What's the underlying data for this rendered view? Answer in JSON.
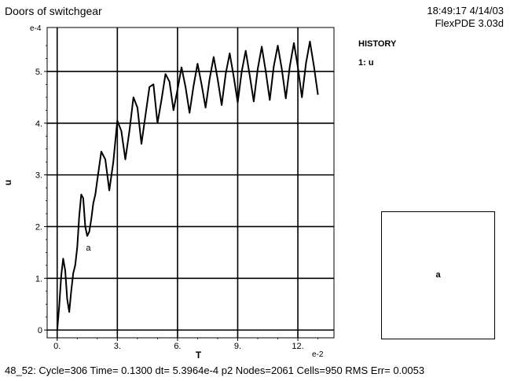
{
  "header": {
    "title": "Doors of switchgear",
    "time_date": "18:49:17 4/14/03",
    "program": "FlexPDE 3.03d"
  },
  "legend": {
    "title": "HISTORY",
    "entry": "1: u"
  },
  "mesh_panel": {
    "region_label": "a"
  },
  "status_line": "48_52:  Cycle=306  Time= 0.1300  dt= 5.3964e-4  p2  Nodes=2061 Cells=950 RMS Err= 0.0053",
  "chart_data": {
    "type": "line",
    "title": "Doors of switchgear",
    "xlabel": "T",
    "ylabel": "u",
    "x_exponent": "e-2",
    "y_exponent": "e-4",
    "xlim": [
      -0.5,
      13.8
    ],
    "ylim": [
      -0.15,
      5.85
    ],
    "x_ticks": [
      0,
      3,
      6,
      9,
      12
    ],
    "x_tick_labels": [
      "0.",
      "3.",
      "6.",
      "9.",
      "12."
    ],
    "y_ticks": [
      0,
      1,
      2,
      3,
      4,
      5
    ],
    "y_tick_labels": [
      "0",
      "1.",
      "2.",
      "3.",
      "4.",
      "5."
    ],
    "grid": true,
    "annotation": {
      "text": "a",
      "x": 1.55,
      "y": 1.75
    },
    "series": [
      {
        "name": "u",
        "x": [
          0.0,
          0.1,
          0.2,
          0.3,
          0.4,
          0.5,
          0.6,
          0.7,
          0.8,
          0.9,
          1.0,
          1.1,
          1.2,
          1.3,
          1.4,
          1.5,
          1.6,
          1.7,
          1.8,
          1.9,
          2.0,
          2.2,
          2.4,
          2.6,
          2.8,
          3.0,
          3.2,
          3.4,
          3.6,
          3.8,
          4.0,
          4.2,
          4.4,
          4.6,
          4.8,
          5.0,
          5.2,
          5.4,
          5.6,
          5.8,
          6.0,
          6.2,
          6.4,
          6.6,
          6.8,
          7.0,
          7.2,
          7.4,
          7.6,
          7.8,
          8.0,
          8.2,
          8.4,
          8.6,
          8.8,
          9.0,
          9.2,
          9.4,
          9.6,
          9.8,
          10.0,
          10.2,
          10.4,
          10.6,
          10.8,
          11.0,
          11.2,
          11.4,
          11.6,
          11.8,
          12.0,
          12.2,
          12.4,
          12.6,
          12.8,
          13.0
        ],
        "y": [
          0.0,
          0.45,
          1.05,
          1.38,
          1.15,
          0.6,
          0.35,
          0.75,
          1.1,
          1.25,
          1.6,
          2.2,
          2.62,
          2.55,
          2.0,
          1.82,
          1.9,
          2.15,
          2.45,
          2.62,
          2.9,
          3.45,
          3.3,
          2.7,
          3.25,
          4.05,
          3.85,
          3.3,
          3.85,
          4.5,
          4.3,
          3.6,
          4.15,
          4.7,
          4.75,
          4.0,
          4.45,
          4.95,
          4.8,
          4.25,
          4.65,
          5.08,
          4.7,
          4.2,
          4.72,
          5.15,
          4.75,
          4.3,
          4.85,
          5.28,
          4.85,
          4.35,
          4.95,
          5.35,
          4.9,
          4.4,
          5.0,
          5.4,
          4.92,
          4.42,
          5.05,
          5.48,
          5.0,
          4.45,
          5.1,
          5.5,
          5.05,
          4.48,
          5.1,
          5.55,
          5.08,
          4.5,
          5.15,
          5.58,
          5.1,
          4.55
        ]
      }
    ]
  }
}
